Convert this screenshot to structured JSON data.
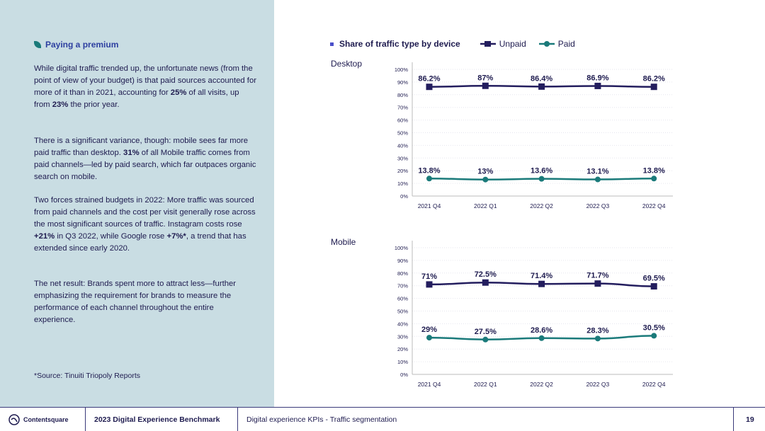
{
  "left": {
    "section_title": "Paying a premium",
    "p1": [
      "While digital traffic trended up, the unfortunate news (from the point of view of your budget) is that paid sources accounted for more of it than in 2021, accounting for ",
      "25%",
      " of all visits, up from ",
      "23%",
      " the prior year."
    ],
    "p2": [
      "There is a significant variance, though: mobile sees far more paid traffic than desktop. ",
      "31%",
      " of all Mobile traffic comes from paid channels—led by paid search, which far outpaces organic search on mobile."
    ],
    "p3": [
      "Two forces strained budgets in 2022: More traffic was sourced from paid channels and the cost per visit generally rose across the most significant sources of traffic. Instagram costs rose ",
      "+21%",
      " in Q3 2022, while Google rose ",
      "+7%*",
      ", a trend that has extended since early 2020."
    ],
    "p4": "The net result: Brands spent more to attract less—further emphasizing the requirement for brands to measure the performance of each channel throughout the entire experience.",
    "source": "*Source: Tinuiti Triopoly Reports"
  },
  "footer": {
    "logo": "Contentsquare",
    "report": "2023 Digital Experience Benchmark",
    "section": "Digital experience KPIs - Traffic segmentation",
    "page": "19"
  },
  "colors": {
    "unpaid": "#231d5e",
    "paid": "#1a7a7a",
    "panel": "#c9dde3"
  },
  "chart_data": {
    "type": "line",
    "title": "Share of traffic type by device",
    "legend": [
      "Unpaid",
      "Paid"
    ],
    "legend_position": "top",
    "ylim": [
      0,
      100
    ],
    "yticks": [
      "0%",
      "10%",
      "20%",
      "30%",
      "40%",
      "50%",
      "60%",
      "70%",
      "80%",
      "90%",
      "100%"
    ],
    "categories": [
      "2021 Q4",
      "2022 Q1",
      "2022 Q2",
      "2022 Q3",
      "2022 Q4"
    ],
    "panels": [
      {
        "name": "Desktop",
        "series": [
          {
            "name": "Unpaid",
            "values": [
              86.2,
              87,
              86.4,
              86.9,
              86.2
            ],
            "labels": [
              "86.2%",
              "87%",
              "86.4%",
              "86.9%",
              "86.2%"
            ]
          },
          {
            "name": "Paid",
            "values": [
              13.8,
              13,
              13.6,
              13.1,
              13.8
            ],
            "labels": [
              "13.8%",
              "13%",
              "13.6%",
              "13.1%",
              "13.8%"
            ]
          }
        ]
      },
      {
        "name": "Mobile",
        "series": [
          {
            "name": "Unpaid",
            "values": [
              71,
              72.5,
              71.4,
              71.7,
              69.5
            ],
            "labels": [
              "71%",
              "72.5%",
              "71.4%",
              "71.7%",
              "69.5%"
            ]
          },
          {
            "name": "Paid",
            "values": [
              29,
              27.5,
              28.6,
              28.3,
              30.5
            ],
            "labels": [
              "29%",
              "27.5%",
              "28.6%",
              "28.3%",
              "30.5%"
            ]
          }
        ]
      }
    ]
  }
}
